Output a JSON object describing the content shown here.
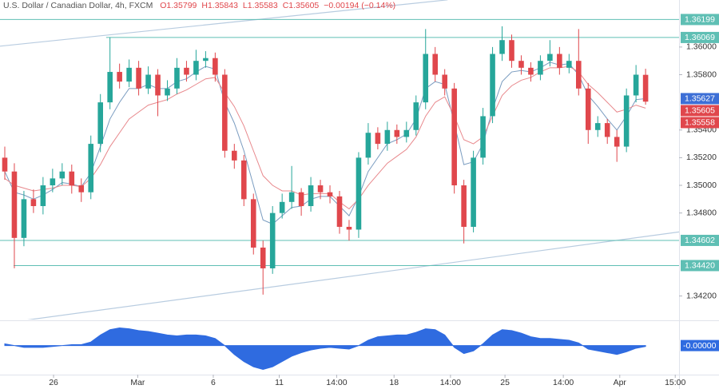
{
  "chart_data": {
    "type": "candlestick",
    "title": "U.S. Dollar / Canadian Dollar, 4h, FXCM",
    "header_values": [
      "O1.35799",
      "H1.35843",
      "L1.35583",
      "C1.35605",
      "−0.00194 (−0.14%)"
    ],
    "xlim": [
      -0.5,
      70.5
    ],
    "xticks": [
      {
        "value": 5.1,
        "label": "26"
      },
      {
        "value": 13.9,
        "label": "Mar"
      },
      {
        "value": 21.8,
        "label": "6"
      },
      {
        "value": 28.7,
        "label": "11"
      },
      {
        "value": 34.7,
        "label": "14:00"
      },
      {
        "value": 40.7,
        "label": "18"
      },
      {
        "value": 46.6,
        "label": "14:00"
      },
      {
        "value": 52.3,
        "label": "25"
      },
      {
        "value": 58.4,
        "label": "14:00"
      },
      {
        "value": 64.3,
        "label": "Apr"
      },
      {
        "value": 70.1,
        "label": "15:00"
      }
    ],
    "ylim": [
      1.3403,
      1.3634
    ],
    "yticks": [
      {
        "value": 1.36,
        "label": "1.36000"
      },
      {
        "value": 1.358,
        "label": "1.35800"
      },
      {
        "value": 1.354,
        "label": "1.35400"
      },
      {
        "value": 1.352,
        "label": "1.35200"
      },
      {
        "value": 1.35,
        "label": "1.35000"
      },
      {
        "value": 1.348,
        "label": "1.34800"
      },
      {
        "value": 1.342,
        "label": "1.34200"
      }
    ],
    "up_color": "#26a69a",
    "down_color": "#e0474c",
    "candles": {
      "open": [
        1.352,
        1.351,
        1.3462,
        1.349,
        1.3485,
        1.35,
        1.3505,
        1.351,
        1.35,
        1.3495,
        1.353,
        1.356,
        1.3582,
        1.3575,
        1.3585,
        1.357,
        1.358,
        1.3565,
        1.357,
        1.3585,
        1.358,
        1.359,
        1.3592,
        1.358,
        1.3525,
        1.3518,
        1.349,
        1.3455,
        1.344,
        1.348,
        1.3488,
        1.3495,
        1.3485,
        1.35,
        1.3495,
        1.3492,
        1.347,
        1.3468,
        1.352,
        1.3538,
        1.353,
        1.354,
        1.3535,
        1.354,
        1.356,
        1.3595,
        1.358,
        1.357,
        1.35,
        1.347,
        1.352,
        1.355,
        1.3595,
        1.3605,
        1.359,
        1.3585,
        1.358,
        1.359,
        1.3595,
        1.3585,
        1.359,
        1.357,
        1.354,
        1.3545,
        1.3535,
        1.3528,
        1.3565,
        1.35799
      ],
      "high": [
        1.3528,
        1.3516,
        1.3496,
        1.3497,
        1.3506,
        1.3512,
        1.3516,
        1.3515,
        1.3505,
        1.3536,
        1.3566,
        1.3607,
        1.3588,
        1.3591,
        1.359,
        1.3586,
        1.3584,
        1.3576,
        1.3592,
        1.359,
        1.3598,
        1.3597,
        1.3596,
        1.3584,
        1.353,
        1.3522,
        1.3494,
        1.346,
        1.3485,
        1.3494,
        1.3514,
        1.3498,
        1.3506,
        1.3504,
        1.35,
        1.3496,
        1.3475,
        1.3524,
        1.3545,
        1.3542,
        1.3546,
        1.3544,
        1.3546,
        1.3565,
        1.3613,
        1.36,
        1.3584,
        1.3574,
        1.3504,
        1.3525,
        1.3556,
        1.36,
        1.3615,
        1.3609,
        1.3594,
        1.3589,
        1.3594,
        1.3605,
        1.36,
        1.3595,
        1.3613,
        1.3574,
        1.355,
        1.3548,
        1.354,
        1.357,
        1.3587,
        1.35843
      ],
      "low": [
        1.3504,
        1.344,
        1.3456,
        1.348,
        1.3479,
        1.3495,
        1.35,
        1.3494,
        1.3488,
        1.349,
        1.3524,
        1.3555,
        1.357,
        1.3571,
        1.3565,
        1.3566,
        1.355,
        1.3561,
        1.3566,
        1.3575,
        1.3576,
        1.3585,
        1.3575,
        1.352,
        1.3512,
        1.3485,
        1.345,
        1.3421,
        1.3436,
        1.3476,
        1.3483,
        1.3478,
        1.3481,
        1.349,
        1.3487,
        1.3465,
        1.346,
        1.3462,
        1.3515,
        1.3526,
        1.3525,
        1.353,
        1.3531,
        1.3536,
        1.3555,
        1.3575,
        1.3565,
        1.3494,
        1.3458,
        1.3466,
        1.3515,
        1.3545,
        1.359,
        1.3585,
        1.358,
        1.3575,
        1.3576,
        1.3586,
        1.358,
        1.3581,
        1.3565,
        1.353,
        1.3535,
        1.353,
        1.3517,
        1.3524,
        1.356,
        1.35583
      ],
      "close": [
        1.351,
        1.3462,
        1.349,
        1.3485,
        1.35,
        1.3505,
        1.351,
        1.35,
        1.3495,
        1.353,
        1.356,
        1.3582,
        1.3575,
        1.3585,
        1.357,
        1.358,
        1.3565,
        1.357,
        1.3585,
        1.358,
        1.359,
        1.3592,
        1.358,
        1.3525,
        1.3518,
        1.349,
        1.3455,
        1.344,
        1.348,
        1.3488,
        1.3495,
        1.3485,
        1.35,
        1.3495,
        1.3492,
        1.347,
        1.3468,
        1.352,
        1.3538,
        1.353,
        1.354,
        1.3535,
        1.354,
        1.356,
        1.3595,
        1.358,
        1.357,
        1.35,
        1.347,
        1.352,
        1.355,
        1.3595,
        1.3605,
        1.359,
        1.3585,
        1.358,
        1.359,
        1.3595,
        1.3585,
        1.359,
        1.357,
        1.354,
        1.3545,
        1.3535,
        1.3528,
        1.3565,
        1.358,
        1.35605
      ],
      "last_label": "1.35605"
    },
    "series": [
      {
        "color": "#7a9cc0",
        "last_label": "1.35627",
        "label_color": "#3d6fd6",
        "values": [
          1.351,
          1.3495,
          1.3493,
          1.349,
          1.3493,
          1.3497,
          1.3502,
          1.3501,
          1.3499,
          1.3509,
          1.3528,
          1.3548,
          1.356,
          1.357,
          1.357,
          1.3573,
          1.357,
          1.357,
          1.3575,
          1.3577,
          1.3582,
          1.3586,
          1.3584,
          1.356,
          1.3545,
          1.3525,
          1.35,
          1.3475,
          1.3472,
          1.3478,
          1.3484,
          1.3485,
          1.349,
          1.3492,
          1.3492,
          1.3485,
          1.3478,
          1.3492,
          1.351,
          1.352,
          1.353,
          1.3533,
          1.3537,
          1.3548,
          1.357,
          1.3575,
          1.3573,
          1.3545,
          1.3515,
          1.3517,
          1.353,
          1.3555,
          1.3575,
          1.3582,
          1.3583,
          1.3582,
          1.3585,
          1.3589,
          1.3587,
          1.3588,
          1.358,
          1.3565,
          1.3557,
          1.3548,
          1.354,
          1.355,
          1.3562,
          1.35627
        ]
      },
      {
        "color": "#e8888c",
        "last_label": "1.35558",
        "label_color": "#e0474c",
        "values": [
          1.3505,
          1.35,
          1.3498,
          1.3496,
          1.3497,
          1.3498,
          1.35,
          1.35,
          1.3499,
          1.3505,
          1.3515,
          1.3528,
          1.3538,
          1.3548,
          1.3553,
          1.3558,
          1.356,
          1.3562,
          1.3566,
          1.3569,
          1.3573,
          1.3577,
          1.3578,
          1.3567,
          1.3557,
          1.3543,
          1.3525,
          1.3507,
          1.35,
          1.3496,
          1.3496,
          1.3493,
          1.3494,
          1.3494,
          1.3494,
          1.3488,
          1.3483,
          1.349,
          1.35,
          1.3508,
          1.3516,
          1.3521,
          1.3526,
          1.3535,
          1.355,
          1.356,
          1.3564,
          1.355,
          1.3533,
          1.353,
          1.3535,
          1.355,
          1.3565,
          1.3572,
          1.3576,
          1.3578,
          1.3582,
          1.3585,
          1.3585,
          1.3586,
          1.3582,
          1.3573,
          1.3567,
          1.356,
          1.3553,
          1.3555,
          1.3558,
          1.35558
        ]
      }
    ],
    "levels": [
      {
        "value": 1.36199,
        "label": "1.36199",
        "start": -0.5
      },
      {
        "value": 1.36069,
        "label": "1.36069",
        "start": 10.6
      },
      {
        "value": 1.34602,
        "label": "1.34602",
        "start": -0.5
      },
      {
        "value": 1.3442,
        "label": "1.34420",
        "start": 0.92
      }
    ],
    "level_color": "#5fbfb4",
    "trendlines": [
      {
        "x": [
          -0.5,
          46.3
        ],
        "y": [
          1.36006,
          1.36341
        ]
      },
      {
        "x": [
          -0.5,
          70.5
        ],
        "y": [
          1.34,
          1.34663
        ]
      }
    ],
    "trendline_color": "#b8cce0",
    "oscillator": {
      "color": "#2f6be0",
      "ylim": [
        -1.6,
        1.25
      ],
      "last_label": "-0.00000",
      "values": [
        0.1,
        0.0,
        -0.1,
        -0.1,
        -0.1,
        -0.05,
        0.0,
        0.05,
        0.05,
        0.2,
        0.6,
        0.9,
        1.0,
        0.95,
        0.85,
        0.8,
        0.7,
        0.6,
        0.55,
        0.6,
        0.6,
        0.55,
        0.4,
        0.0,
        -0.5,
        -0.9,
        -1.2,
        -1.35,
        -1.2,
        -0.9,
        -0.6,
        -0.4,
        -0.25,
        -0.15,
        -0.1,
        -0.15,
        -0.2,
        0.0,
        0.3,
        0.5,
        0.55,
        0.6,
        0.6,
        0.75,
        0.95,
        0.9,
        0.6,
        -0.1,
        -0.45,
        -0.3,
        0.1,
        0.6,
        0.9,
        0.85,
        0.7,
        0.5,
        0.4,
        0.4,
        0.35,
        0.3,
        0.15,
        -0.2,
        -0.3,
        -0.4,
        -0.5,
        -0.35,
        -0.15,
        -0.05
      ]
    }
  }
}
